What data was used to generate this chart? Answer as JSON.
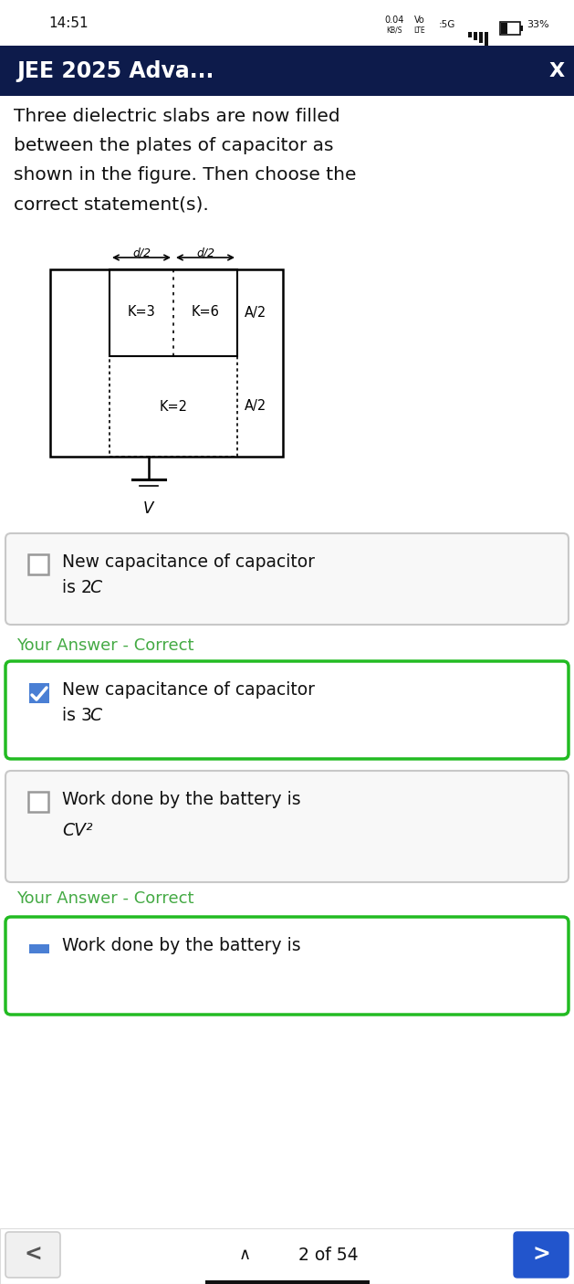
{
  "status_bar_time": "14:51",
  "header_bg": "#0d1b4b",
  "header_text": "JEE 2025 Adva...",
  "header_x": "X",
  "question_lines": [
    "Three dielectric slabs are now filled",
    "between the plates of capacitor as",
    "shown in the figure. Then choose the",
    "correct statement(s)."
  ],
  "option1_line1": "New capacitance of capacitor",
  "option1_line2": "is 2",
  "option1_italic": "C",
  "option1_checked": false,
  "option1_border": "#c8c8c8",
  "option1_bg": "#f8f8f8",
  "answer1_text": "Your Answer - Correct",
  "option2_line1": "New capacitance of capacitor",
  "option2_line2": "is 3",
  "option2_italic": "C",
  "option2_checked": true,
  "option2_border": "#22bb22",
  "option2_bg": "#ffffff",
  "answer2_text": "Your Answer - Correct",
  "option3_line1": "Work done by the battery is",
  "option3_line2": "CV²",
  "option3_checked": false,
  "option3_border": "#c8c8c8",
  "option3_bg": "#f8f8f8",
  "option4_line1": "Work done by the battery is",
  "option4_border": "#22bb22",
  "option4_bg": "#ffffff",
  "nav_text": "2 of 54",
  "bg_color": "#ffffff",
  "text_color": "#111111",
  "green_color": "#44aa44",
  "blue_check_color": "#4a7fd4",
  "status_bar_bg": "#ffffff"
}
